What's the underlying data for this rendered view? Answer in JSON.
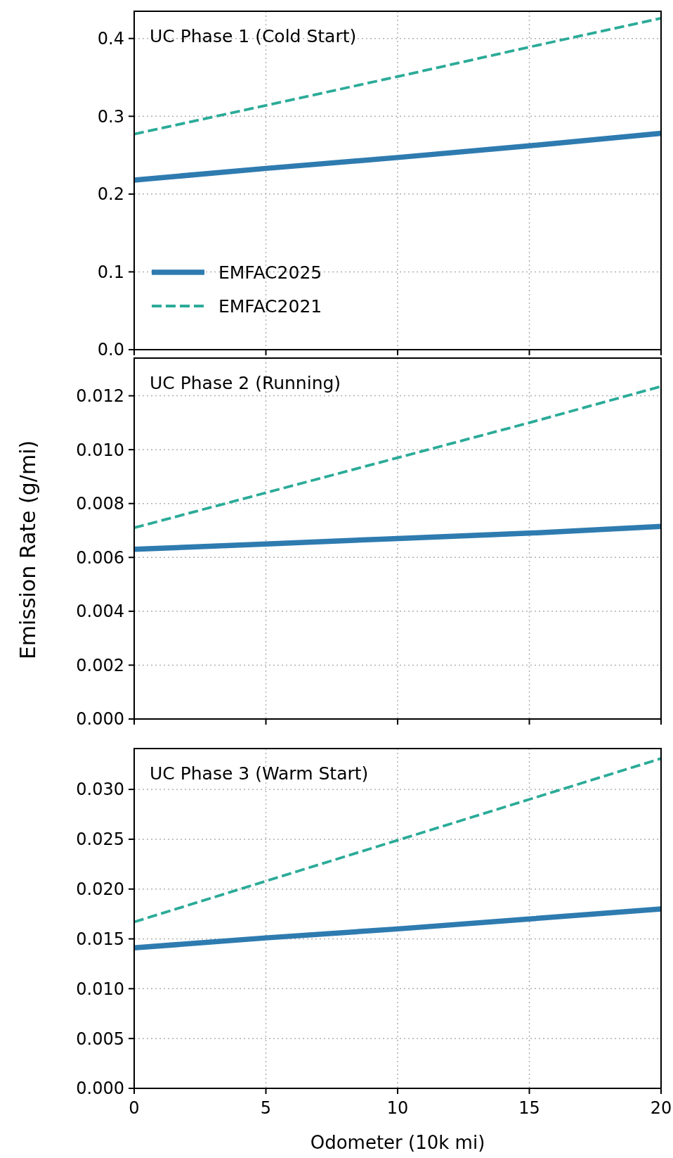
{
  "chart_data": [
    {
      "type": "line",
      "title": "UC Phase 1 (Cold Start)",
      "x": [
        0,
        5,
        10,
        15,
        20
      ],
      "xlim": [
        0,
        20
      ],
      "xticks": [
        0,
        5,
        10,
        15,
        20
      ],
      "ylim": [
        0,
        0.435
      ],
      "yticks": [
        {
          "value": 0,
          "label": "0.0"
        },
        0.1,
        0.2,
        0.3,
        0.4
      ],
      "grid": true,
      "legend": "bottom left",
      "tick_labels": "y",
      "series": [
        {
          "name": "EMFAC2025",
          "color": "#2e7bb0",
          "line_style": "solid",
          "values": [
            0.218,
            0.233,
            0.247,
            0.262,
            0.278
          ]
        },
        {
          "name": "EMFAC2021",
          "color": "#2bab98",
          "line_style": "dashed",
          "values": [
            0.277,
            0.314,
            0.351,
            0.389,
            0.426
          ]
        }
      ]
    },
    {
      "type": "line",
      "title": "UC Phase 2 (Running)",
      "ylabel": "Emission Rate (g/mi)",
      "x": [
        0,
        5,
        10,
        15,
        20
      ],
      "xlim": [
        0,
        20
      ],
      "xticks": [
        0,
        5,
        10,
        15,
        20
      ],
      "ylim": [
        0,
        0.0134
      ],
      "yticks": [
        {
          "value": 0,
          "label": "0.000"
        },
        {
          "value": 0.002,
          "label": "0.002"
        },
        {
          "value": 0.004,
          "label": "0.004"
        },
        {
          "value": 0.006,
          "label": "0.006"
        },
        {
          "value": 0.008,
          "label": "0.008"
        },
        {
          "value": 0.01,
          "label": "0.010"
        },
        {
          "value": 0.012,
          "label": "0.012"
        }
      ],
      "grid": true,
      "tick_labels": "y",
      "series": [
        {
          "color": "#2e7bb0",
          "line_style": "solid",
          "values": [
            0.0063,
            0.0065,
            0.0067,
            0.0069,
            0.00715
          ]
        },
        {
          "color": "#2bab98",
          "line_style": "dashed",
          "values": [
            0.0071,
            0.0084,
            0.0097,
            0.011,
            0.01235
          ]
        }
      ]
    },
    {
      "type": "line",
      "title": "UC Phase 3 (Warm Start)",
      "xlabel": "Odometer (10k mi)",
      "x": [
        0,
        5,
        10,
        15,
        20
      ],
      "xlim": [
        0,
        20
      ],
      "xticks": [
        0,
        5,
        10,
        15,
        20
      ],
      "ylim": [
        0,
        0.0341
      ],
      "yticks": [
        {
          "value": 0,
          "label": "0.000"
        },
        {
          "value": 0.005,
          "label": "0.005"
        },
        {
          "value": 0.01,
          "label": "0.010"
        },
        {
          "value": 0.015,
          "label": "0.015"
        },
        {
          "value": 0.02,
          "label": "0.020"
        },
        {
          "value": 0.025,
          "label": "0.025"
        },
        {
          "value": 0.03,
          "label": "0.030"
        }
      ],
      "grid": true,
      "series": [
        {
          "color": "#2e7bb0",
          "line_style": "solid",
          "values": [
            0.0141,
            0.0151,
            0.016,
            0.017,
            0.018
          ]
        },
        {
          "color": "#2bab98",
          "line_style": "dashed",
          "values": [
            0.0167,
            0.0208,
            0.0249,
            0.029,
            0.0331
          ]
        }
      ]
    }
  ]
}
